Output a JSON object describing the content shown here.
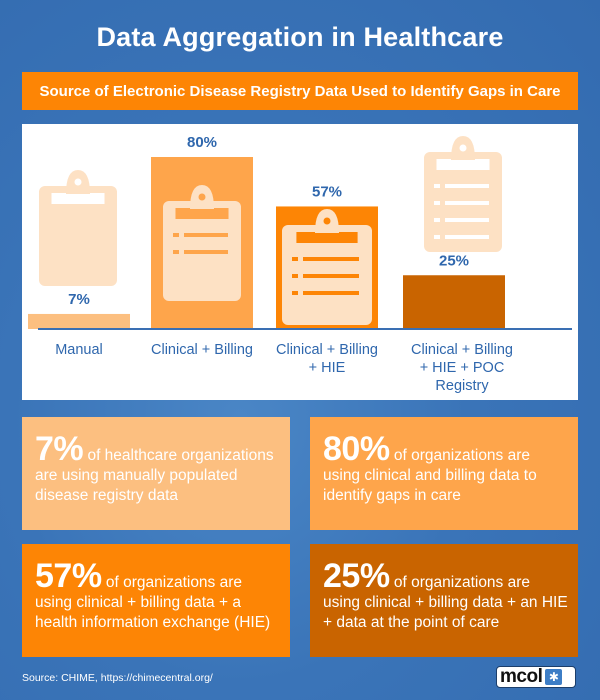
{
  "header": {
    "title": "Data Aggregation in Healthcare",
    "subtitle": "Source of Electronic Disease Registry Data Used to Identify Gaps in Care"
  },
  "colors": {
    "background": "#3a74b8",
    "accent_orange": "#fd8505",
    "light_orange": "#fcbf80",
    "mid_orange": "#fea54b",
    "dark_orange": "#c96400",
    "clipboard": "#fde1c4",
    "label_blue": "#2f67ad"
  },
  "chart_data": {
    "type": "bar",
    "title": "Source of Electronic Disease Registry Data Used to Identify Gaps in Care",
    "categories": [
      "Manual",
      "Clinical + Billing",
      "Clinical + Billing + HIE",
      "Clinical + Billing + HIE + POC Registry"
    ],
    "category_lines": [
      [
        "Manual"
      ],
      [
        "Clinical + Billing"
      ],
      [
        "Clinical + Billing",
        "+ HIE"
      ],
      [
        "Clinical + Billing",
        "+ HIE + POC",
        "Registry"
      ]
    ],
    "values": [
      7,
      80,
      57,
      25
    ],
    "value_labels": [
      "7%",
      "80%",
      "57%",
      "25%"
    ],
    "bar_colors": [
      "#fcbf80",
      "#fea54b",
      "#fd8505",
      "#c96400"
    ],
    "unit": "%",
    "ylim": [
      0,
      100
    ],
    "grid": false,
    "xlabel": "",
    "ylabel": ""
  },
  "cards": [
    {
      "big": "7%",
      "text": "of healthcare organizations are using manually populated disease registry data",
      "color": "#fcbf80"
    },
    {
      "big": "80%",
      "text": "of organizations are using clinical and billing data to identify gaps in care",
      "color": "#fea54b"
    },
    {
      "big": "57%",
      "text": "of organizations are using clinical + billing data + a health information exchange (HIE)",
      "color": "#fd8505"
    },
    {
      "big": "25%",
      "text": "of organizations are using clinical + billing data + an HIE + data at the point of care",
      "color": "#c96400"
    }
  ],
  "footer": {
    "source": "Source:  CHIME, https://chimecentral.org/",
    "logo_text": "mcol"
  }
}
